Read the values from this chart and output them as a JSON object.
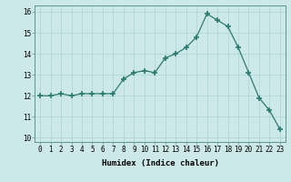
{
  "x": [
    0,
    1,
    2,
    3,
    4,
    5,
    6,
    7,
    8,
    9,
    10,
    11,
    12,
    13,
    14,
    15,
    16,
    17,
    18,
    19,
    20,
    21,
    22,
    23
  ],
  "y": [
    12.0,
    12.0,
    12.1,
    12.0,
    12.1,
    12.1,
    12.1,
    12.1,
    12.8,
    13.1,
    13.2,
    13.1,
    13.8,
    14.0,
    14.3,
    14.8,
    15.9,
    15.6,
    15.3,
    14.3,
    13.1,
    11.9,
    11.3,
    10.4
  ],
  "line_color": "#2d7a6e",
  "marker": "+",
  "marker_size": 4,
  "marker_lw": 1.2,
  "bg_color": "#cce8e8",
  "grid_color": "#b0d8d8",
  "xlabel": "Humidex (Indice chaleur)",
  "xlim": [
    -0.5,
    23.5
  ],
  "ylim": [
    9.8,
    16.3
  ],
  "yticks": [
    10,
    11,
    12,
    13,
    14,
    15,
    16
  ],
  "xticks": [
    0,
    1,
    2,
    3,
    4,
    5,
    6,
    7,
    8,
    9,
    10,
    11,
    12,
    13,
    14,
    15,
    16,
    17,
    18,
    19,
    20,
    21,
    22,
    23
  ],
  "xlabel_fontsize": 6.5,
  "tick_fontsize": 5.5,
  "line_width": 0.9
}
